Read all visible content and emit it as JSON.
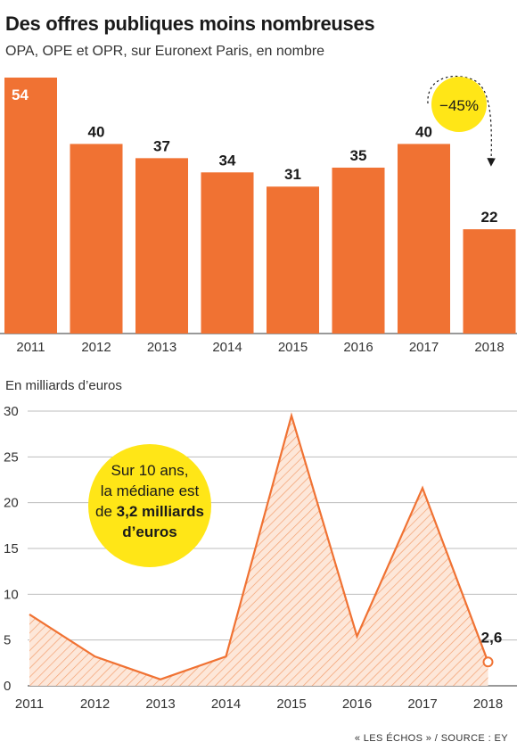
{
  "header": {
    "title": "Des offres publiques moins nombreuses",
    "subtitle": "OPA, OPE et OPR, sur Euronext Paris, en nombre"
  },
  "colors": {
    "accent": "#f07233",
    "highlight": "#ffe617",
    "text": "#1a1a1a"
  },
  "chart_data": [
    {
      "type": "bar",
      "categories": [
        "2011",
        "2012",
        "2013",
        "2014",
        "2015",
        "2016",
        "2017",
        "2018"
      ],
      "values": [
        54,
        40,
        37,
        34,
        31,
        35,
        40,
        22
      ],
      "title": "Des offres publiques moins nombreuses",
      "subtitle": "OPA, OPE et OPR, sur Euronext Paris, en nombre",
      "annotation": "−45%",
      "ylim": [
        0,
        55
      ],
      "grid": false,
      "color": "#f07233"
    },
    {
      "type": "area",
      "ylabel": "En milliards d’euros",
      "x": [
        "2011",
        "2012",
        "2013",
        "2014",
        "2015",
        "2016",
        "2017",
        "2018"
      ],
      "values": [
        7.8,
        3.2,
        0.7,
        3.2,
        29.5,
        5.4,
        21.6,
        2.6
      ],
      "data_labels": {
        "2018": "2,6"
      },
      "yticks": [
        "0",
        "5",
        "10",
        "15",
        "20",
        "25",
        "30"
      ],
      "ylim": [
        0,
        30
      ],
      "grid": true,
      "color": "#f07233",
      "callout": {
        "line1": "Sur 10 ans,",
        "line2": "la médiane est",
        "line3_prefix": "de ",
        "line3_bold": "3,2 milliards",
        "line4": "d’euros"
      }
    }
  ],
  "footer": {
    "source": "« LES ÉCHOS » / SOURCE : EY"
  }
}
